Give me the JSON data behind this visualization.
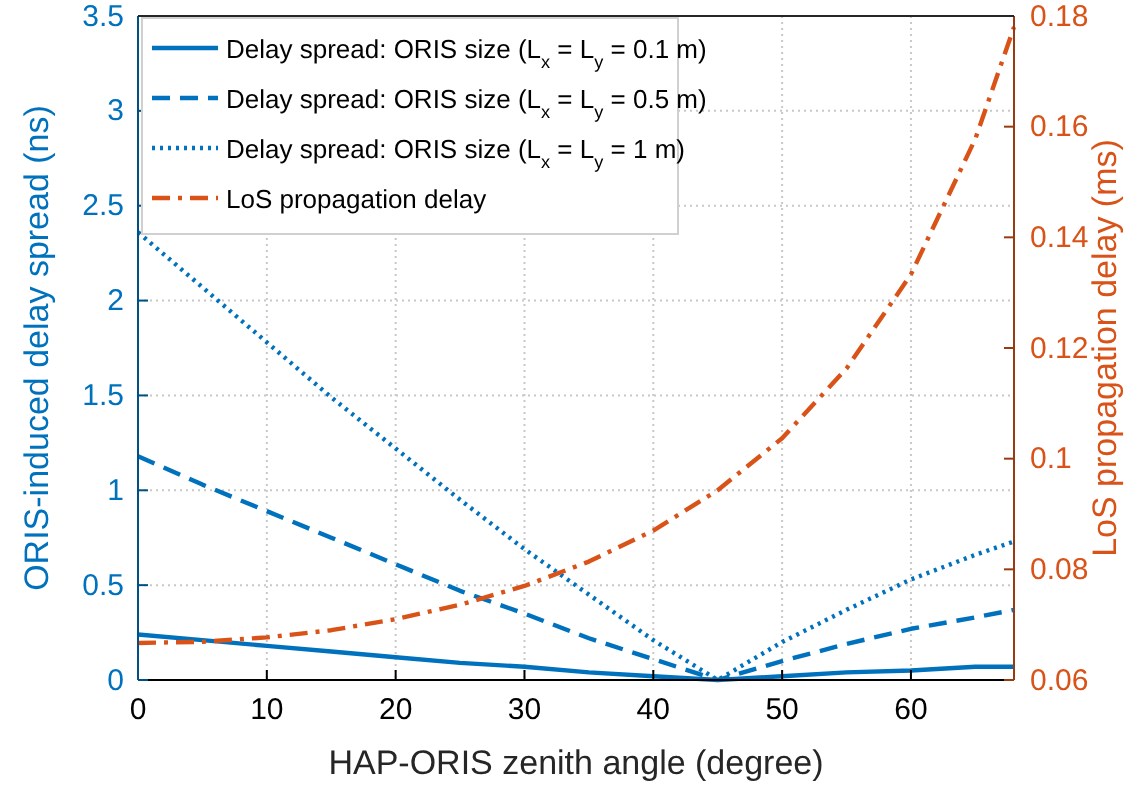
{
  "chart_data": {
    "type": "line",
    "xlabel": "HAP-ORIS zenith angle (degree)",
    "ylabel": "ORIS-induced delay spread (ns)",
    "y2label": "LoS propagation delay (ms)",
    "x": [
      0,
      5,
      10,
      15,
      20,
      25,
      30,
      35,
      40,
      45,
      50,
      55,
      60,
      65,
      68
    ],
    "xlim": [
      0,
      68
    ],
    "xticks": [
      0,
      10,
      20,
      30,
      40,
      50,
      60
    ],
    "ylim": [
      0,
      3.5
    ],
    "yticks": [
      0,
      0.5,
      1,
      1.5,
      2,
      2.5,
      3,
      3.5
    ],
    "y2lim": [
      0.06,
      0.18
    ],
    "y2ticks": [
      0.06,
      0.08,
      0.1,
      0.12,
      0.14,
      0.16,
      0.18
    ],
    "grid": true,
    "legend": "top left",
    "marker": "none",
    "series": [
      {
        "name": "Delay spread: ORIS size (L$_{x}$ = L$_{y}$ = 0.1 m)",
        "color": "#0072bd",
        "line_style": "solid",
        "values": [
          0.24,
          0.21,
          0.18,
          0.15,
          0.12,
          0.09,
          0.07,
          0.04,
          0.02,
          0,
          0.02,
          0.04,
          0.05,
          0.07,
          0.07
        ]
      },
      {
        "name": "Delay spread: ORIS size (L$_{x}$ = L$_{y}$ = 0.5 m)",
        "color": "#0072bd",
        "line_style": "dashed",
        "values": [
          1.18,
          1.03,
          0.89,
          0.75,
          0.61,
          0.47,
          0.35,
          0.22,
          0.11,
          0,
          0.1,
          0.19,
          0.27,
          0.33,
          0.37
        ]
      },
      {
        "name": "Delay spread: ORIS size (L$_{x}$ = L$_{y}$ = 1 m)",
        "color": "#0072bd",
        "line_style": "dotted",
        "values": [
          2.36,
          2.07,
          1.78,
          1.49,
          1.22,
          0.95,
          0.69,
          0.45,
          0.21,
          0,
          0.2,
          0.37,
          0.53,
          0.66,
          0.73
        ]
      },
      {
        "name": "LoS propagation delay",
        "color": "#d95319",
        "line_style": "dashdot",
        "axis": "y2",
        "values": [
          0.0667,
          0.0669,
          0.0677,
          0.069,
          0.071,
          0.0736,
          0.077,
          0.0814,
          0.087,
          0.0943,
          0.1037,
          0.1163,
          0.1333,
          0.1578,
          0.178
        ]
      }
    ]
  }
}
